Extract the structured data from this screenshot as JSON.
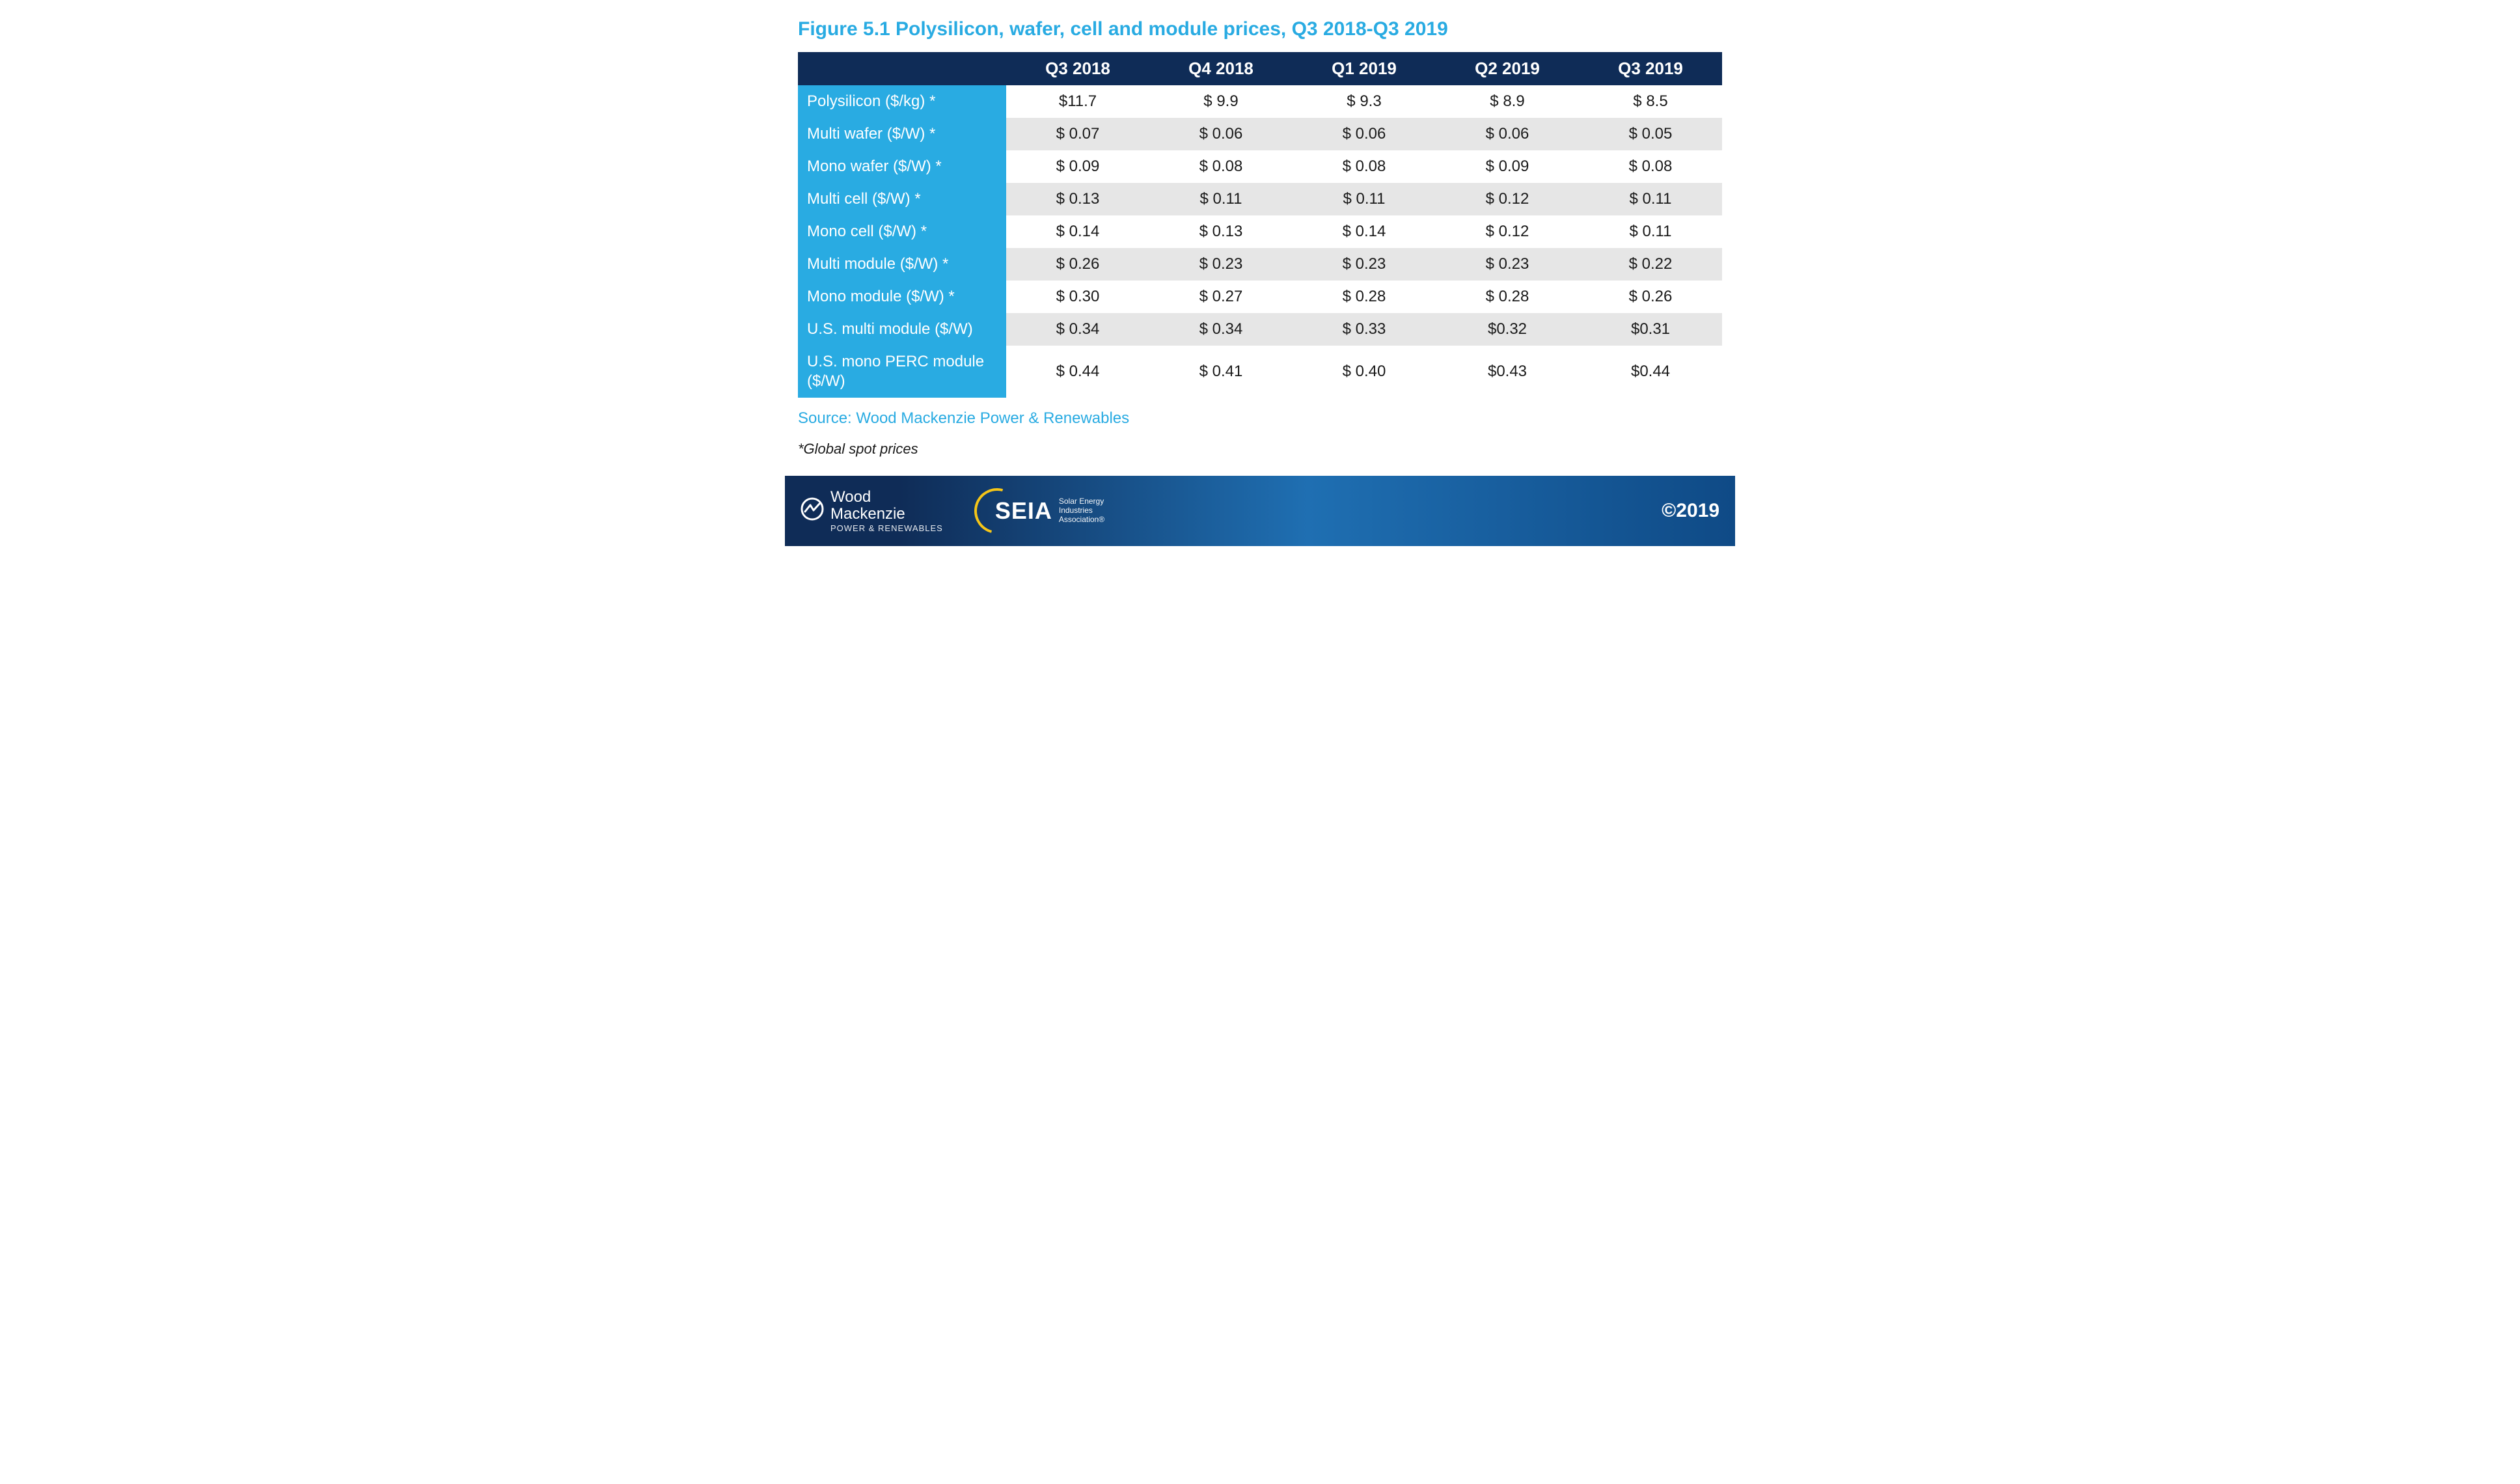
{
  "figure": {
    "title": "Figure 5.1 Polysilicon, wafer, cell and module prices, Q3 2018-Q3 2019",
    "source": "Source: Wood Mackenzie Power & Renewables",
    "footnote": "*Global spot prices",
    "type": "table",
    "colors": {
      "title_color": "#29abe2",
      "header_bg": "#0f2c57",
      "header_text": "#ffffff",
      "rowlabel_bg": "#29abe2",
      "rowlabel_text": "#ffffff",
      "row_even_bg": "#e6e6e6",
      "row_odd_bg": "#ffffff",
      "cell_text": "#1a1a1a",
      "source_color": "#29abe2"
    },
    "fontsizes": {
      "title": 30,
      "header": 26,
      "cell": 24,
      "source": 24,
      "footnote": 22
    },
    "columns": [
      "Q3 2018",
      "Q4 2018",
      "Q1 2019",
      "Q2 2019",
      "Q3 2019"
    ],
    "rows": [
      {
        "label": "Polysilicon ($/kg) *",
        "values": [
          "$11.7",
          "$ 9.9",
          "$ 9.3",
          "$ 8.9",
          "$ 8.5"
        ]
      },
      {
        "label": "Multi wafer ($/W) *",
        "values": [
          "$ 0.07",
          "$ 0.06",
          "$ 0.06",
          "$ 0.06",
          "$ 0.05"
        ]
      },
      {
        "label": "Mono wafer ($/W) *",
        "values": [
          "$ 0.09",
          "$ 0.08",
          "$ 0.08",
          "$ 0.09",
          "$ 0.08"
        ]
      },
      {
        "label": "Multi cell ($/W) *",
        "values": [
          "$ 0.13",
          "$ 0.11",
          "$ 0.11",
          "$ 0.12",
          "$ 0.11"
        ]
      },
      {
        "label": "Mono cell ($/W) *",
        "values": [
          "$ 0.14",
          "$ 0.13",
          "$ 0.14",
          "$ 0.12",
          "$ 0.11"
        ]
      },
      {
        "label": "Multi module ($/W) *",
        "values": [
          "$ 0.26",
          "$ 0.23",
          "$ 0.23",
          "$ 0.23",
          "$ 0.22"
        ]
      },
      {
        "label": "Mono module ($/W) *",
        "values": [
          "$ 0.30",
          "$ 0.27",
          "$ 0.28",
          "$ 0.28",
          "$ 0.26"
        ]
      },
      {
        "label": "U.S. multi module ($/W)",
        "values": [
          "$ 0.34",
          "$ 0.34",
          "$ 0.33",
          "$0.32",
          "$0.31"
        ]
      },
      {
        "label": "U.S. mono PERC module ($/W)",
        "values": [
          "$ 0.44",
          "$ 0.41",
          "$ 0.40",
          "$0.43",
          "$0.44"
        ]
      }
    ]
  },
  "footer": {
    "wm_name_line1": "Wood",
    "wm_name_line2": "Mackenzie",
    "wm_subline": "POWER & RENEWABLES",
    "seia_word": "SEIA",
    "seia_sub_line1": "Solar Energy",
    "seia_sub_line2": "Industries",
    "seia_sub_line3": "Association®",
    "copyright": "©2019",
    "bg_gradient_from": "#0f2c57",
    "bg_gradient_to": "#0f4a86",
    "seia_ring_color": "#f5c518"
  }
}
